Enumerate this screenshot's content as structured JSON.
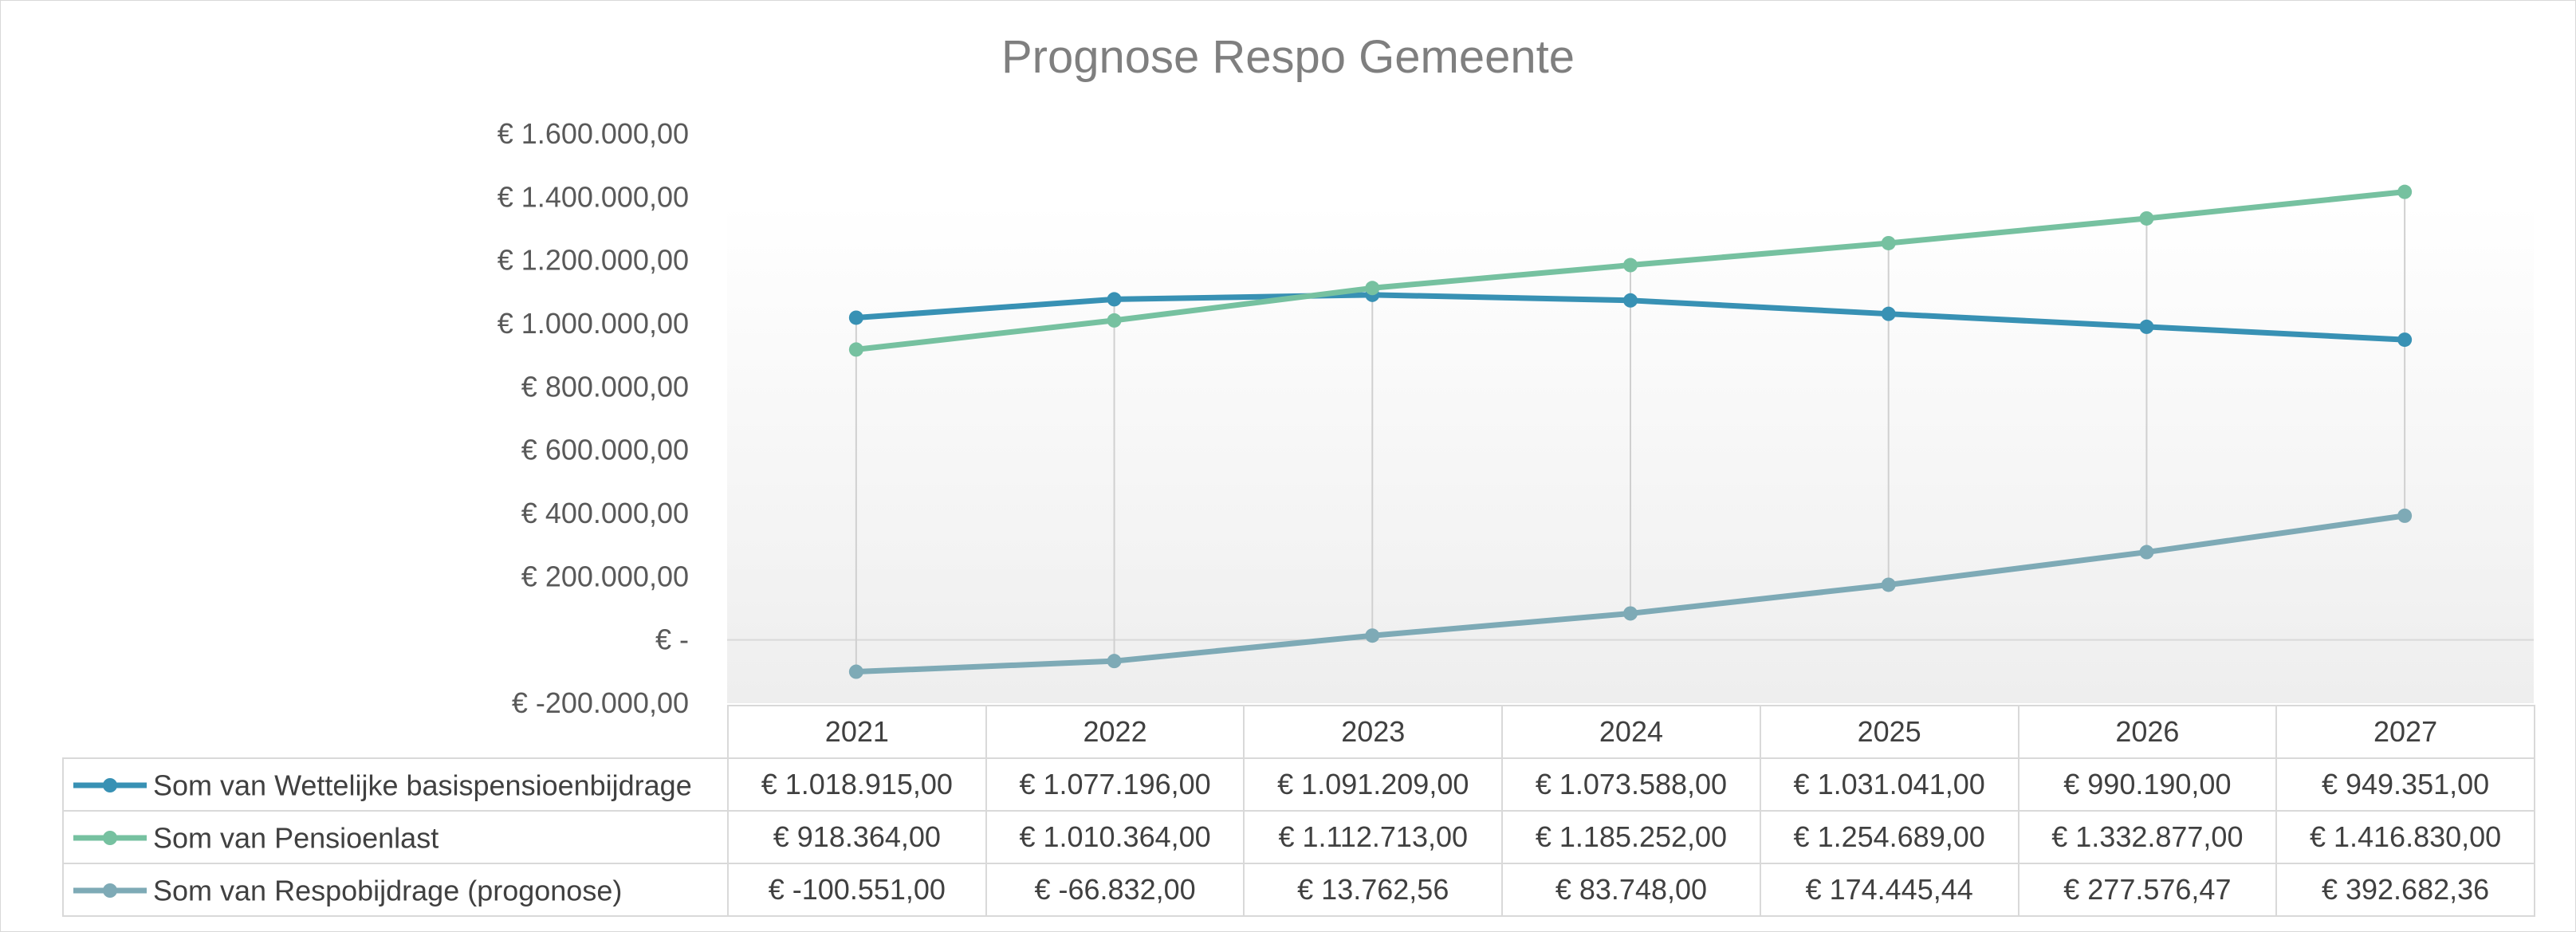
{
  "chart_data": {
    "type": "line",
    "title": "Prognose Respo Gemeente",
    "categories": [
      "2021",
      "2022",
      "2023",
      "2024",
      "2025",
      "2026",
      "2027"
    ],
    "ylim": [
      -200000,
      1600000
    ],
    "y_ticks": [
      -200000,
      0,
      200000,
      400000,
      600000,
      800000,
      1000000,
      1200000,
      1400000,
      1600000
    ],
    "y_tick_labels": [
      "€ -200.000,00",
      "€ -",
      "€ 200.000,00",
      "€ 400.000,00",
      "€ 600.000,00",
      "€ 800.000,00",
      "€ 1.000.000,00",
      "€ 1.200.000,00",
      "€ 1.400.000,00",
      "€ 1.600.000,00"
    ],
    "grid": "vertical",
    "legend": "data table",
    "series": [
      {
        "name": "Som van Wettelijke basispensioenbijdrage",
        "color": "#3891b4",
        "values": [
          1018915.0,
          1077196.0,
          1091209.0,
          1073588.0,
          1031041.0,
          990190.0,
          949351.0
        ],
        "labels": [
          "€ 1.018.915,00",
          "€ 1.077.196,00",
          "€ 1.091.209,00",
          "€ 1.073.588,00",
          "€ 1.031.041,00",
          "€ 990.190,00",
          "€ 949.351,00"
        ]
      },
      {
        "name": "Som van Pensioenlast",
        "color": "#76c1a0",
        "values": [
          918364.0,
          1010364.0,
          1112713.0,
          1185252.0,
          1254689.0,
          1332877.0,
          1416830.0
        ],
        "labels": [
          "€ 918.364,00",
          "€ 1.010.364,00",
          "€ 1.112.713,00",
          "€ 1.185.252,00",
          "€ 1.254.689,00",
          "€ 1.332.877,00",
          "€ 1.416.830,00"
        ]
      },
      {
        "name": "Som van Respobijdrage (progonose)",
        "color": "#7eaab6",
        "values": [
          -100551.0,
          -66832.0,
          13762.56,
          83748.0,
          174445.44,
          277576.47,
          392682.36
        ],
        "labels": [
          "€ -100.551,00",
          "€ -66.832,00",
          "€ 13.762,56",
          "€ 83.748,00",
          "€ 174.445,44",
          "€ 277.576,47",
          "€ 392.682,36"
        ]
      }
    ]
  }
}
